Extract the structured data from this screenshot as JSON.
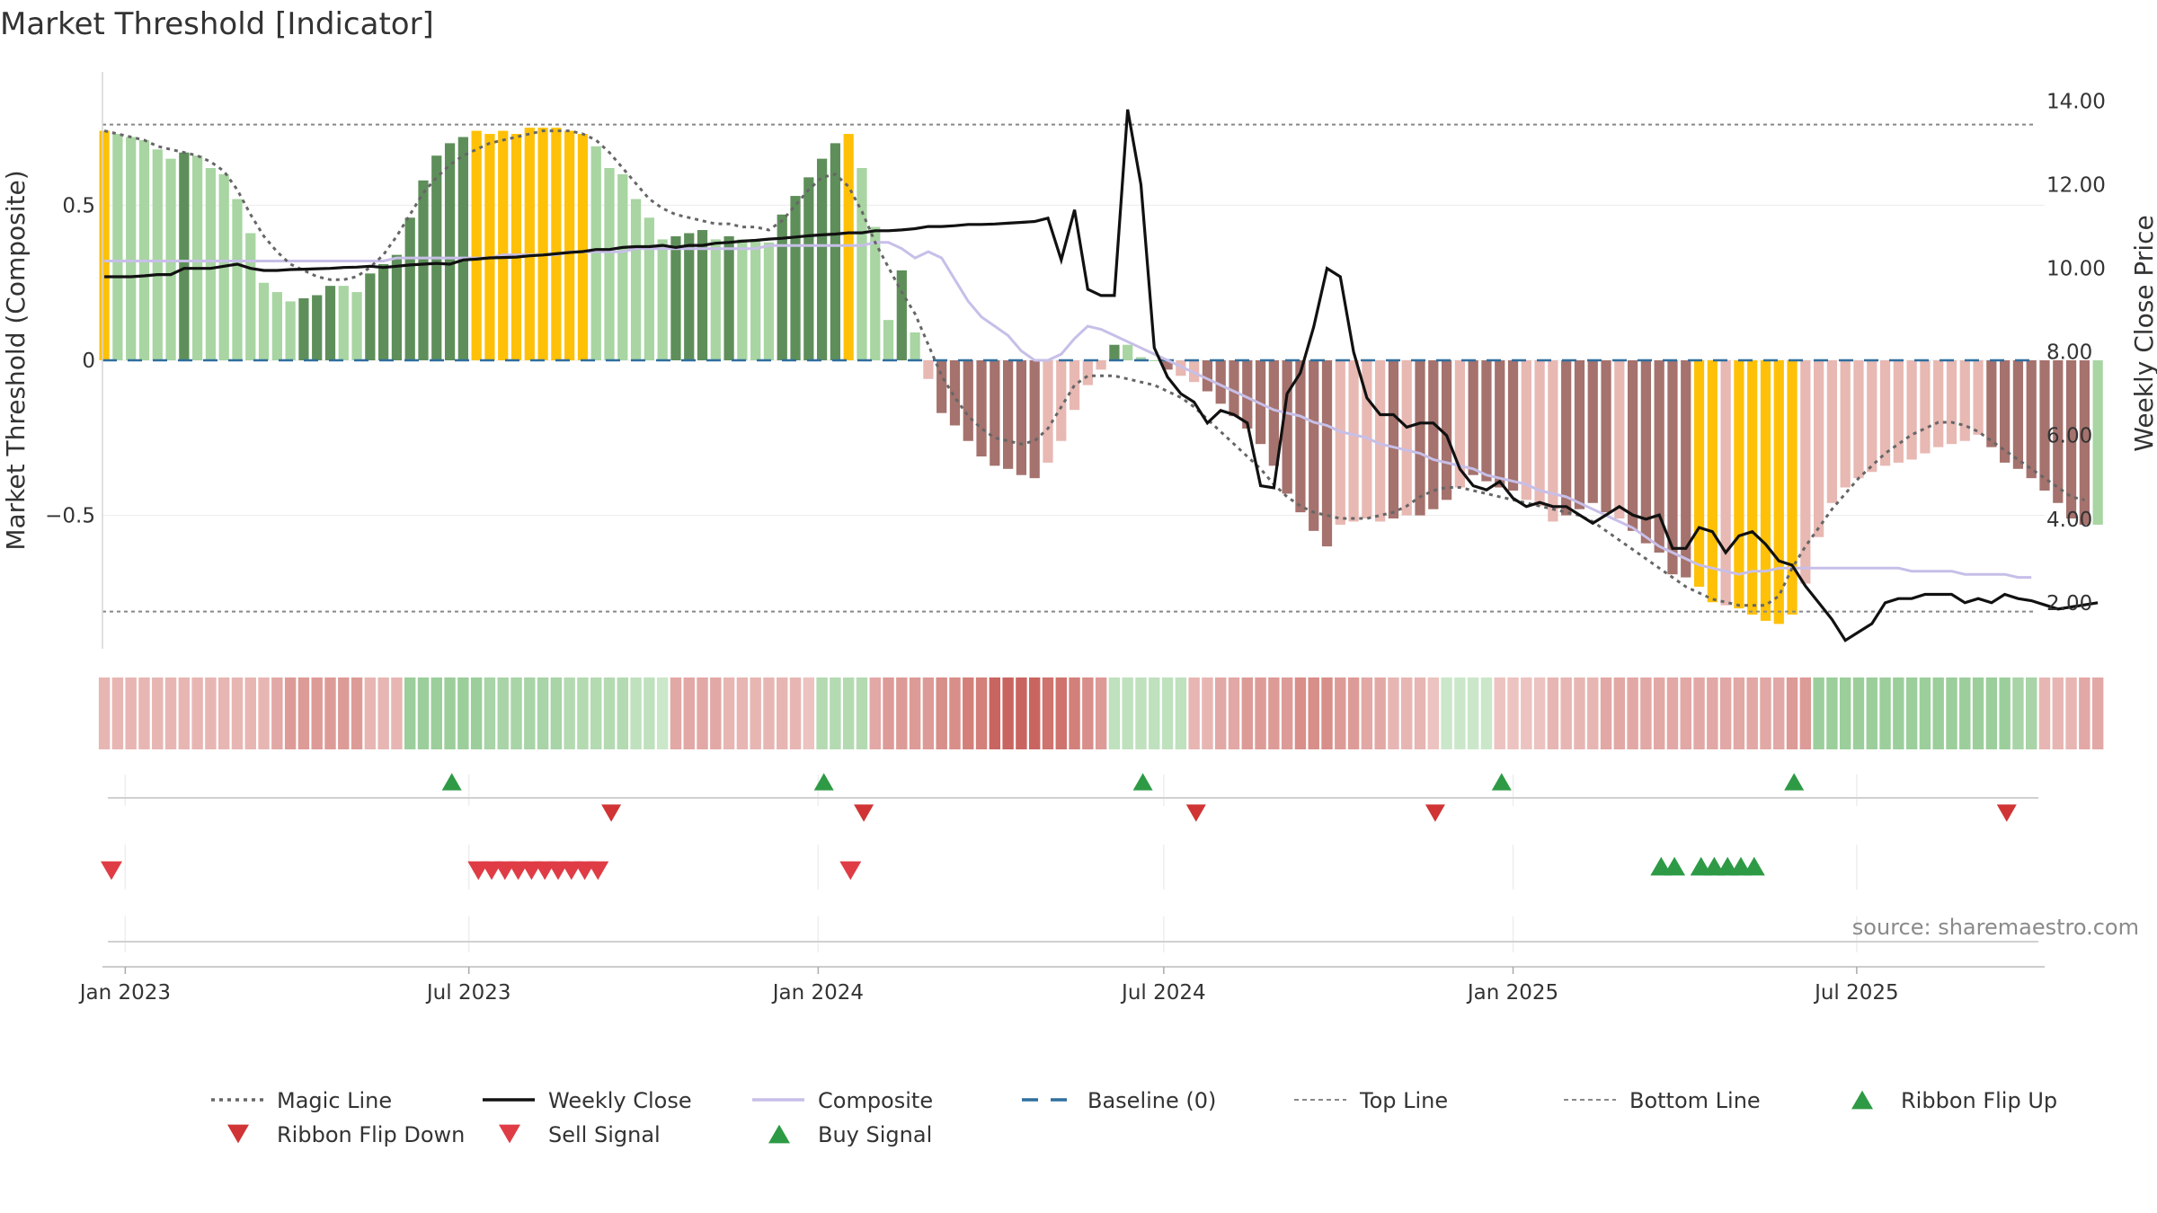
{
  "chart_data": {
    "type": "bar",
    "title": "Market Threshold [Indicator]",
    "ylabel_left": "Market Threshold (Composite)",
    "ylabel_right": "Weekly Close Price",
    "source": "source: sharemaestro.com",
    "x_range": [
      "2022-12-20",
      "2025-10-08"
    ],
    "ylim_left": [
      -0.93,
      0.93
    ],
    "ylim_right": [
      0.9,
      14.7
    ],
    "y_ticks_left": [
      {
        "value": 0.5,
        "label": "0.5"
      },
      {
        "value": 0,
        "label": "0"
      },
      {
        "value": -0.5,
        "label": "−0.5"
      }
    ],
    "y_ticks_right": [
      {
        "value": 14,
        "label": "14.00"
      },
      {
        "value": 12,
        "label": "12.00"
      },
      {
        "value": 10,
        "label": "10.00"
      },
      {
        "value": 8,
        "label": "8.00"
      },
      {
        "value": 6,
        "label": "6.00"
      },
      {
        "value": 4,
        "label": "4.00"
      },
      {
        "value": 2,
        "label": "2.00"
      }
    ],
    "x_ticks": [
      {
        "date": "2023-01-01",
        "label": "Jan 2023"
      },
      {
        "date": "2023-07-01",
        "label": "Jul 2023"
      },
      {
        "date": "2024-01-01",
        "label": "Jan 2024"
      },
      {
        "date": "2024-07-01",
        "label": "Jul 2024"
      },
      {
        "date": "2025-01-01",
        "label": "Jan 2025"
      },
      {
        "date": "2025-07-01",
        "label": "Jul 2025"
      }
    ],
    "top_line": 0.76,
    "bottom_line": -0.81,
    "baseline": 0,
    "first_week": "2022-12-21",
    "week_interval_days": 7,
    "histogram": [
      0.74,
      0.73,
      0.72,
      0.71,
      0.68,
      0.65,
      0.67,
      0.66,
      0.62,
      0.6,
      0.52,
      0.41,
      0.25,
      0.22,
      0.19,
      0.2,
      0.21,
      0.24,
      0.24,
      0.22,
      0.28,
      0.31,
      0.34,
      0.46,
      0.58,
      0.66,
      0.7,
      0.72,
      0.74,
      0.73,
      0.74,
      0.73,
      0.75,
      0.75,
      0.75,
      0.74,
      0.73,
      0.69,
      0.62,
      0.6,
      0.52,
      0.46,
      0.39,
      0.4,
      0.41,
      0.42,
      0.39,
      0.4,
      0.39,
      0.39,
      0.38,
      0.47,
      0.53,
      0.59,
      0.65,
      0.7,
      0.73,
      0.62,
      0.43,
      0.13,
      0.29,
      0.09,
      -0.06,
      -0.17,
      -0.21,
      -0.26,
      -0.31,
      -0.34,
      -0.35,
      -0.37,
      -0.38,
      -0.33,
      -0.26,
      -0.16,
      -0.08,
      -0.03,
      0.05,
      0.05,
      0.01,
      0,
      -0.03,
      -0.05,
      -0.07,
      -0.1,
      -0.14,
      -0.18,
      -0.22,
      -0.27,
      -0.34,
      -0.43,
      -0.49,
      -0.55,
      -0.6,
      -0.53,
      -0.52,
      -0.51,
      -0.52,
      -0.51,
      -0.5,
      -0.5,
      -0.48,
      -0.45,
      -0.41,
      -0.37,
      -0.39,
      -0.41,
      -0.42,
      -0.45,
      -0.47,
      -0.52,
      -0.5,
      -0.48,
      -0.46,
      -0.49,
      -0.51,
      -0.55,
      -0.59,
      -0.62,
      -0.69,
      -0.7,
      -0.73,
      -0.78,
      -0.79,
      -0.8,
      -0.82,
      -0.84,
      -0.85,
      -0.82,
      -0.72,
      -0.57,
      -0.46,
      -0.41,
      -0.38,
      -0.36,
      -0.34,
      -0.33,
      -0.32,
      -0.3,
      -0.28,
      -0.27,
      -0.26,
      -0.24,
      -0.28,
      -0.33,
      -0.35,
      -0.38,
      -0.42,
      -0.46,
      -0.51,
      -0.53,
      -0.53
    ],
    "bar_colors": [
      "#ffc107",
      "#a8d5a2",
      "#a8d5a2",
      "#a8d5a2",
      "#a8d5a2",
      "#a8d5a2",
      "#5e8f5a",
      "#a8d5a2",
      "#a8d5a2",
      "#a8d5a2",
      "#a8d5a2",
      "#a8d5a2",
      "#a8d5a2",
      "#a8d5a2",
      "#a8d5a2",
      "#5e8f5a",
      "#5e8f5a",
      "#5e8f5a",
      "#a8d5a2",
      "#a8d5a2",
      "#5e8f5a",
      "#5e8f5a",
      "#5e8f5a",
      "#5e8f5a",
      "#5e8f5a",
      "#5e8f5a",
      "#5e8f5a",
      "#5e8f5a",
      "#ffc107",
      "#ffc107",
      "#ffc107",
      "#ffc107",
      "#ffc107",
      "#ffc107",
      "#ffc107",
      "#ffc107",
      "#ffc107",
      "#a8d5a2",
      "#a8d5a2",
      "#a8d5a2",
      "#a8d5a2",
      "#a8d5a2",
      "#a8d5a2",
      "#5e8f5a",
      "#5e8f5a",
      "#5e8f5a",
      "#a8d5a2",
      "#5e8f5a",
      "#a8d5a2",
      "#a8d5a2",
      "#a8d5a2",
      "#5e8f5a",
      "#5e8f5a",
      "#5e8f5a",
      "#5e8f5a",
      "#5e8f5a",
      "#ffc107",
      "#a8d5a2",
      "#a8d5a2",
      "#a8d5a2",
      "#5e8f5a",
      "#a8d5a2",
      "#e8b8b3",
      "#a5726d",
      "#a5726d",
      "#a5726d",
      "#a5726d",
      "#a5726d",
      "#a5726d",
      "#a5726d",
      "#a5726d",
      "#e8b8b3",
      "#e8b8b3",
      "#e8b8b3",
      "#e8b8b3",
      "#e8b8b3",
      "#5e8f5a",
      "#a8d5a2",
      "#a8d5a2",
      "#a8d5a2",
      "#a5726d",
      "#e8b8b3",
      "#e8b8b3",
      "#a5726d",
      "#a5726d",
      "#a5726d",
      "#a5726d",
      "#a5726d",
      "#a5726d",
      "#a5726d",
      "#a5726d",
      "#a5726d",
      "#a5726d",
      "#e8b8b3",
      "#e8b8b3",
      "#e8b8b3",
      "#e8b8b3",
      "#a5726d",
      "#e8b8b3",
      "#a5726d",
      "#a5726d",
      "#a5726d",
      "#e8b8b3",
      "#a5726d",
      "#a5726d",
      "#a5726d",
      "#a5726d",
      "#e8b8b3",
      "#e8b8b3",
      "#e8b8b3",
      "#a5726d",
      "#a5726d",
      "#a5726d",
      "#a5726d",
      "#e8b8b3",
      "#a5726d",
      "#a5726d",
      "#a5726d",
      "#a5726d",
      "#a5726d",
      "#ffc107",
      "#ffc107",
      "#e8b8b3",
      "#ffc107",
      "#ffc107",
      "#ffc107",
      "#ffc107",
      "#ffc107",
      "#e8b8b3",
      "#e8b8b3",
      "#e8b8b3",
      "#e8b8b3",
      "#e8b8b3",
      "#e8b8b3",
      "#e8b8b3",
      "#e8b8b3",
      "#e8b8b3",
      "#e8b8b3",
      "#e8b8b3",
      "#e8b8b3",
      "#e8b8b3",
      "#e8b8b3",
      "#a5726d",
      "#a5726d",
      "#a5726d",
      "#a5726d",
      "#a5726d",
      "#a5726d",
      "#a5726d",
      "#a5726d"
    ],
    "weekly_close": [
      9.8,
      9.8,
      9.8,
      9.82,
      9.85,
      9.85,
      10.0,
      10.0,
      10.0,
      10.05,
      10.1,
      10.0,
      9.95,
      9.95,
      9.97,
      9.98,
      9.99,
      10.0,
      10.02,
      10.03,
      10.05,
      10.02,
      10.05,
      10.08,
      10.1,
      10.12,
      10.1,
      10.2,
      10.22,
      10.25,
      10.26,
      10.27,
      10.3,
      10.32,
      10.35,
      10.38,
      10.4,
      10.45,
      10.45,
      10.5,
      10.52,
      10.52,
      10.55,
      10.5,
      10.55,
      10.55,
      10.6,
      10.62,
      10.65,
      10.67,
      10.7,
      10.72,
      10.75,
      10.78,
      10.8,
      10.82,
      10.85,
      10.85,
      10.9,
      10.9,
      10.92,
      10.95,
      11.0,
      11.0,
      11.02,
      11.05,
      11.05,
      11.06,
      11.08,
      11.1,
      11.12,
      11.2,
      10.2,
      11.4,
      9.5,
      9.35,
      9.35,
      13.8,
      12.0,
      8.1,
      7.4,
      7.0,
      6.8,
      6.3,
      6.6,
      6.5,
      6.3,
      4.8,
      4.75,
      7.0,
      7.5,
      8.6,
      10.0,
      9.8,
      8.0,
      6.9,
      6.5,
      6.5,
      6.2,
      6.3,
      6.3,
      6.0,
      5.2,
      4.8,
      4.7,
      4.9,
      4.5,
      4.3,
      4.4,
      4.3,
      4.3,
      4.1,
      3.9,
      4.1,
      4.3,
      4.1,
      4.0,
      4.1,
      3.3,
      3.3,
      3.8,
      3.7,
      3.2,
      3.6,
      3.7,
      3.4,
      3.0,
      2.9,
      2.4,
      2.0,
      1.6,
      1.1,
      1.3,
      1.5,
      2.0,
      2.1,
      2.1,
      2.2,
      2.2,
      2.2,
      2.0,
      2.1,
      2.0,
      2.2,
      2.1,
      2.05,
      1.95,
      1.85,
      1.9,
      1.95,
      2.0
    ],
    "composite": [
      0.32,
      0.32,
      0.32,
      0.32,
      0.32,
      0.32,
      0.32,
      0.32,
      0.32,
      0.32,
      0.32,
      0.32,
      0.32,
      0.32,
      0.32,
      0.32,
      0.32,
      0.32,
      0.32,
      0.32,
      0.32,
      0.32,
      0.33,
      0.33,
      0.33,
      0.33,
      0.33,
      0.33,
      0.33,
      0.33,
      0.34,
      0.34,
      0.34,
      0.34,
      0.34,
      0.35,
      0.35,
      0.35,
      0.35,
      0.35,
      0.36,
      0.36,
      0.36,
      0.36,
      0.36,
      0.36,
      0.36,
      0.36,
      0.36,
      0.36,
      0.37,
      0.37,
      0.37,
      0.37,
      0.37,
      0.37,
      0.37,
      0.37,
      0.38,
      0.38,
      0.36,
      0.33,
      0.35,
      0.33,
      0.26,
      0.19,
      0.14,
      0.11,
      0.08,
      0.03,
      0,
      0,
      0.02,
      0.07,
      0.11,
      0.1,
      0.08,
      0.06,
      0.04,
      0.02,
      0,
      -0.02,
      -0.04,
      -0.06,
      -0.08,
      -0.1,
      -0.12,
      -0.14,
      -0.16,
      -0.17,
      -0.18,
      -0.2,
      -0.21,
      -0.23,
      -0.24,
      -0.25,
      -0.27,
      -0.28,
      -0.29,
      -0.3,
      -0.32,
      -0.33,
      -0.34,
      -0.35,
      -0.37,
      -0.38,
      -0.39,
      -0.4,
      -0.42,
      -0.43,
      -0.44,
      -0.46,
      -0.48,
      -0.5,
      -0.52,
      -0.54,
      -0.57,
      -0.6,
      -0.62,
      -0.64,
      -0.66,
      -0.67,
      -0.68,
      -0.69,
      -0.68,
      -0.68,
      -0.67,
      -0.67,
      -0.67,
      -0.67,
      -0.67,
      -0.67,
      -0.67,
      -0.67,
      -0.67,
      -0.67,
      -0.68,
      -0.68,
      -0.68,
      -0.68,
      -0.69,
      -0.69,
      -0.69,
      -0.69,
      -0.7,
      -0.7
    ],
    "magic_line": [
      0.74,
      0.73,
      0.72,
      0.71,
      0.69,
      0.68,
      0.67,
      0.66,
      0.64,
      0.61,
      0.55,
      0.47,
      0.4,
      0.35,
      0.31,
      0.29,
      0.27,
      0.26,
      0.26,
      0.27,
      0.3,
      0.34,
      0.4,
      0.47,
      0.54,
      0.59,
      0.63,
      0.66,
      0.68,
      0.7,
      0.71,
      0.72,
      0.73,
      0.74,
      0.74,
      0.74,
      0.73,
      0.71,
      0.67,
      0.62,
      0.57,
      0.52,
      0.49,
      0.47,
      0.46,
      0.45,
      0.44,
      0.44,
      0.43,
      0.43,
      0.42,
      0.45,
      0.5,
      0.55,
      0.59,
      0.6,
      0.56,
      0.48,
      0.38,
      0.3,
      0.22,
      0.15,
      0.05,
      -0.05,
      -0.12,
      -0.18,
      -0.22,
      -0.25,
      -0.26,
      -0.27,
      -0.26,
      -0.22,
      -0.15,
      -0.08,
      -0.05,
      -0.05,
      -0.05,
      -0.06,
      -0.07,
      -0.08,
      -0.1,
      -0.12,
      -0.15,
      -0.19,
      -0.23,
      -0.27,
      -0.31,
      -0.35,
      -0.4,
      -0.44,
      -0.47,
      -0.49,
      -0.5,
      -0.51,
      -0.51,
      -0.51,
      -0.5,
      -0.49,
      -0.47,
      -0.44,
      -0.42,
      -0.41,
      -0.41,
      -0.42,
      -0.43,
      -0.44,
      -0.45,
      -0.46,
      -0.47,
      -0.48,
      -0.49,
      -0.5,
      -0.52,
      -0.55,
      -0.58,
      -0.61,
      -0.64,
      -0.67,
      -0.7,
      -0.73,
      -0.75,
      -0.77,
      -0.78,
      -0.79,
      -0.79,
      -0.79,
      -0.76,
      -0.67,
      -0.6,
      -0.54,
      -0.48,
      -0.43,
      -0.38,
      -0.34,
      -0.3,
      -0.27,
      -0.24,
      -0.22,
      -0.2,
      -0.2,
      -0.21,
      -0.23,
      -0.26,
      -0.29,
      -0.32,
      -0.35,
      -0.38,
      -0.41,
      -0.44,
      -0.45
    ],
    "ribbon": [
      -0.3,
      -0.3,
      -0.3,
      -0.3,
      -0.3,
      -0.3,
      -0.3,
      -0.3,
      -0.3,
      -0.3,
      -0.3,
      -0.3,
      -0.3,
      -0.4,
      -0.5,
      -0.5,
      -0.5,
      -0.5,
      -0.5,
      -0.5,
      -0.3,
      -0.3,
      -0.3,
      0.6,
      0.6,
      0.6,
      0.6,
      0.6,
      0.6,
      0.5,
      0.5,
      0.5,
      0.5,
      0.5,
      0.5,
      0.4,
      0.4,
      0.4,
      0.4,
      0.4,
      0.3,
      0.3,
      0.2,
      -0.4,
      -0.4,
      -0.4,
      -0.4,
      -0.3,
      -0.3,
      -0.3,
      -0.3,
      -0.3,
      -0.3,
      -0.2,
      0.4,
      0.4,
      0.4,
      0.4,
      -0.4,
      -0.5,
      -0.5,
      -0.5,
      -0.5,
      -0.6,
      -0.6,
      -0.7,
      -0.7,
      -0.9,
      -0.9,
      -0.9,
      -0.9,
      -0.8,
      -0.8,
      -0.7,
      -0.6,
      -0.5,
      0.3,
      0.3,
      0.3,
      0.3,
      0.3,
      0.3,
      -0.3,
      -0.3,
      -0.4,
      -0.4,
      -0.5,
      -0.5,
      -0.5,
      -0.5,
      -0.6,
      -0.6,
      -0.6,
      -0.5,
      -0.5,
      -0.4,
      -0.4,
      -0.3,
      -0.3,
      -0.3,
      -0.2,
      0.2,
      0.2,
      0.2,
      0.2,
      -0.2,
      -0.2,
      -0.2,
      -0.2,
      -0.3,
      -0.3,
      -0.3,
      -0.3,
      -0.4,
      -0.4,
      -0.4,
      -0.4,
      -0.4,
      -0.4,
      -0.4,
      -0.4,
      -0.4,
      -0.4,
      -0.4,
      -0.4,
      -0.4,
      -0.4,
      -0.5,
      -0.5,
      0.6,
      0.6,
      0.6,
      0.6,
      0.6,
      0.6,
      0.6,
      0.6,
      0.6,
      0.6,
      0.6,
      0.6,
      0.6,
      0.6,
      0.6,
      0.5,
      0.5,
      -0.3,
      -0.3,
      -0.3,
      -0.4,
      -0.4
    ],
    "ribbon_flip_up": [
      "2023-06-22",
      "2024-01-04",
      "2024-06-20",
      "2024-12-26",
      "2025-05-29"
    ],
    "ribbon_flip_down": [
      "2023-09-14",
      "2024-01-25",
      "2024-07-18",
      "2024-11-21",
      "2025-09-18"
    ],
    "sell_signals": [
      "2022-12-21",
      "2023-07-06",
      "2023-07-13",
      "2023-07-20",
      "2023-07-27",
      "2023-08-03",
      "2023-08-10",
      "2023-08-17",
      "2023-08-24",
      "2023-08-31",
      "2023-09-07",
      "2024-01-18"
    ],
    "buy_signals": [
      "2025-03-20",
      "2025-03-27",
      "2025-04-10",
      "2025-04-17",
      "2025-04-24",
      "2025-05-01",
      "2025-05-08"
    ],
    "colors": {
      "strong_bull": "#5e8f5a",
      "weak_bull": "#a8d5a2",
      "extreme": "#ffc107",
      "strong_bear": "#a5726d",
      "weak_bear": "#e8b8b3",
      "magic_line": "#666666",
      "weekly_close": "#111111",
      "composite": "#c7bfe8",
      "baseline": "#2f6e9e",
      "ref_line": "#888888",
      "flip_up": "#2e9a45",
      "flip_down": "#d03434",
      "sell": "#e03c46",
      "buy": "#2e9a45"
    },
    "legend": [
      {
        "label": "Magic Line",
        "style": "dotted",
        "color": "#666666"
      },
      {
        "label": "Weekly Close",
        "style": "solid",
        "color": "#111111"
      },
      {
        "label": "Composite",
        "style": "solid",
        "color": "#c7bfe8"
      },
      {
        "label": "Baseline (0)",
        "style": "dashed",
        "color": "#2f6e9e"
      },
      {
        "label": "Top Line",
        "style": "finedash",
        "color": "#888888"
      },
      {
        "label": "Bottom Line",
        "style": "finedash",
        "color": "#888888"
      },
      {
        "label": "Ribbon Flip Up",
        "style": "triangle-up",
        "color": "#2e9a45"
      },
      {
        "label": "Ribbon Flip Down",
        "style": "triangle-down",
        "color": "#d03434"
      },
      {
        "label": "Sell Signal",
        "style": "triangle-down",
        "color": "#e03c46"
      },
      {
        "label": "Buy Signal",
        "style": "triangle-up",
        "color": "#2e9a45"
      }
    ]
  }
}
